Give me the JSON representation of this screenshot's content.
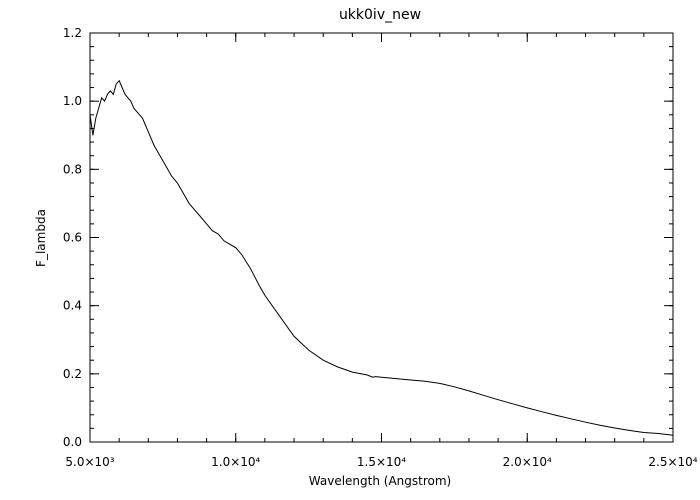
{
  "chart_data": {
    "type": "line",
    "title": "ukk0iv_new",
    "xlabel": "Wavelength (Angstrom)",
    "ylabel": "F_lambda",
    "xlim": [
      5000,
      25000
    ],
    "ylim": [
      0,
      1.2
    ],
    "grid": false,
    "legend": "none",
    "x_ticks": [
      {
        "value": 5000,
        "label": "5.0×10³"
      },
      {
        "value": 10000,
        "label": "1.0×10⁴"
      },
      {
        "value": 15000,
        "label": "1.5×10⁴"
      },
      {
        "value": 20000,
        "label": "2.0×10⁴"
      },
      {
        "value": 25000,
        "label": "2.5×10⁴"
      }
    ],
    "y_ticks": [
      {
        "value": 0.0,
        "label": "0.0"
      },
      {
        "value": 0.2,
        "label": "0.2"
      },
      {
        "value": 0.4,
        "label": "0.4"
      },
      {
        "value": 0.6,
        "label": "0.6"
      },
      {
        "value": 0.8,
        "label": "0.8"
      },
      {
        "value": 1.0,
        "label": "1.0"
      },
      {
        "value": 1.2,
        "label": "1.2"
      }
    ],
    "series": [
      {
        "color": "#000000",
        "x": [
          5000,
          5100,
          5200,
          5300,
          5400,
          5500,
          5600,
          5700,
          5800,
          5900,
          6000,
          6100,
          6200,
          6300,
          6400,
          6500,
          6600,
          6700,
          6800,
          6900,
          7000,
          7200,
          7400,
          7600,
          7800,
          8000,
          8200,
          8400,
          8600,
          8800,
          9000,
          9200,
          9400,
          9600,
          9800,
          10000,
          10200,
          10500,
          10800,
          11000,
          11500,
          12000,
          12500,
          13000,
          13500,
          14000,
          14500,
          14700,
          14800,
          15000,
          15500,
          16000,
          16500,
          17000,
          17500,
          18000,
          18500,
          19000,
          19500,
          20000,
          20500,
          21000,
          21500,
          22000,
          22500,
          23000,
          23500,
          24000,
          24500,
          25000
        ],
        "y": [
          0.96,
          0.9,
          0.95,
          0.98,
          1.01,
          1.0,
          1.02,
          1.03,
          1.02,
          1.05,
          1.06,
          1.04,
          1.02,
          1.01,
          1.0,
          0.98,
          0.97,
          0.96,
          0.95,
          0.93,
          0.91,
          0.87,
          0.84,
          0.81,
          0.78,
          0.76,
          0.73,
          0.7,
          0.68,
          0.66,
          0.64,
          0.62,
          0.61,
          0.59,
          0.58,
          0.57,
          0.55,
          0.51,
          0.46,
          0.43,
          0.37,
          0.31,
          0.27,
          0.24,
          0.22,
          0.205,
          0.197,
          0.19,
          0.192,
          0.19,
          0.186,
          0.182,
          0.178,
          0.172,
          0.162,
          0.15,
          0.137,
          0.124,
          0.112,
          0.1,
          0.089,
          0.078,
          0.068,
          0.058,
          0.049,
          0.041,
          0.034,
          0.028,
          0.025,
          0.02
        ]
      }
    ]
  }
}
